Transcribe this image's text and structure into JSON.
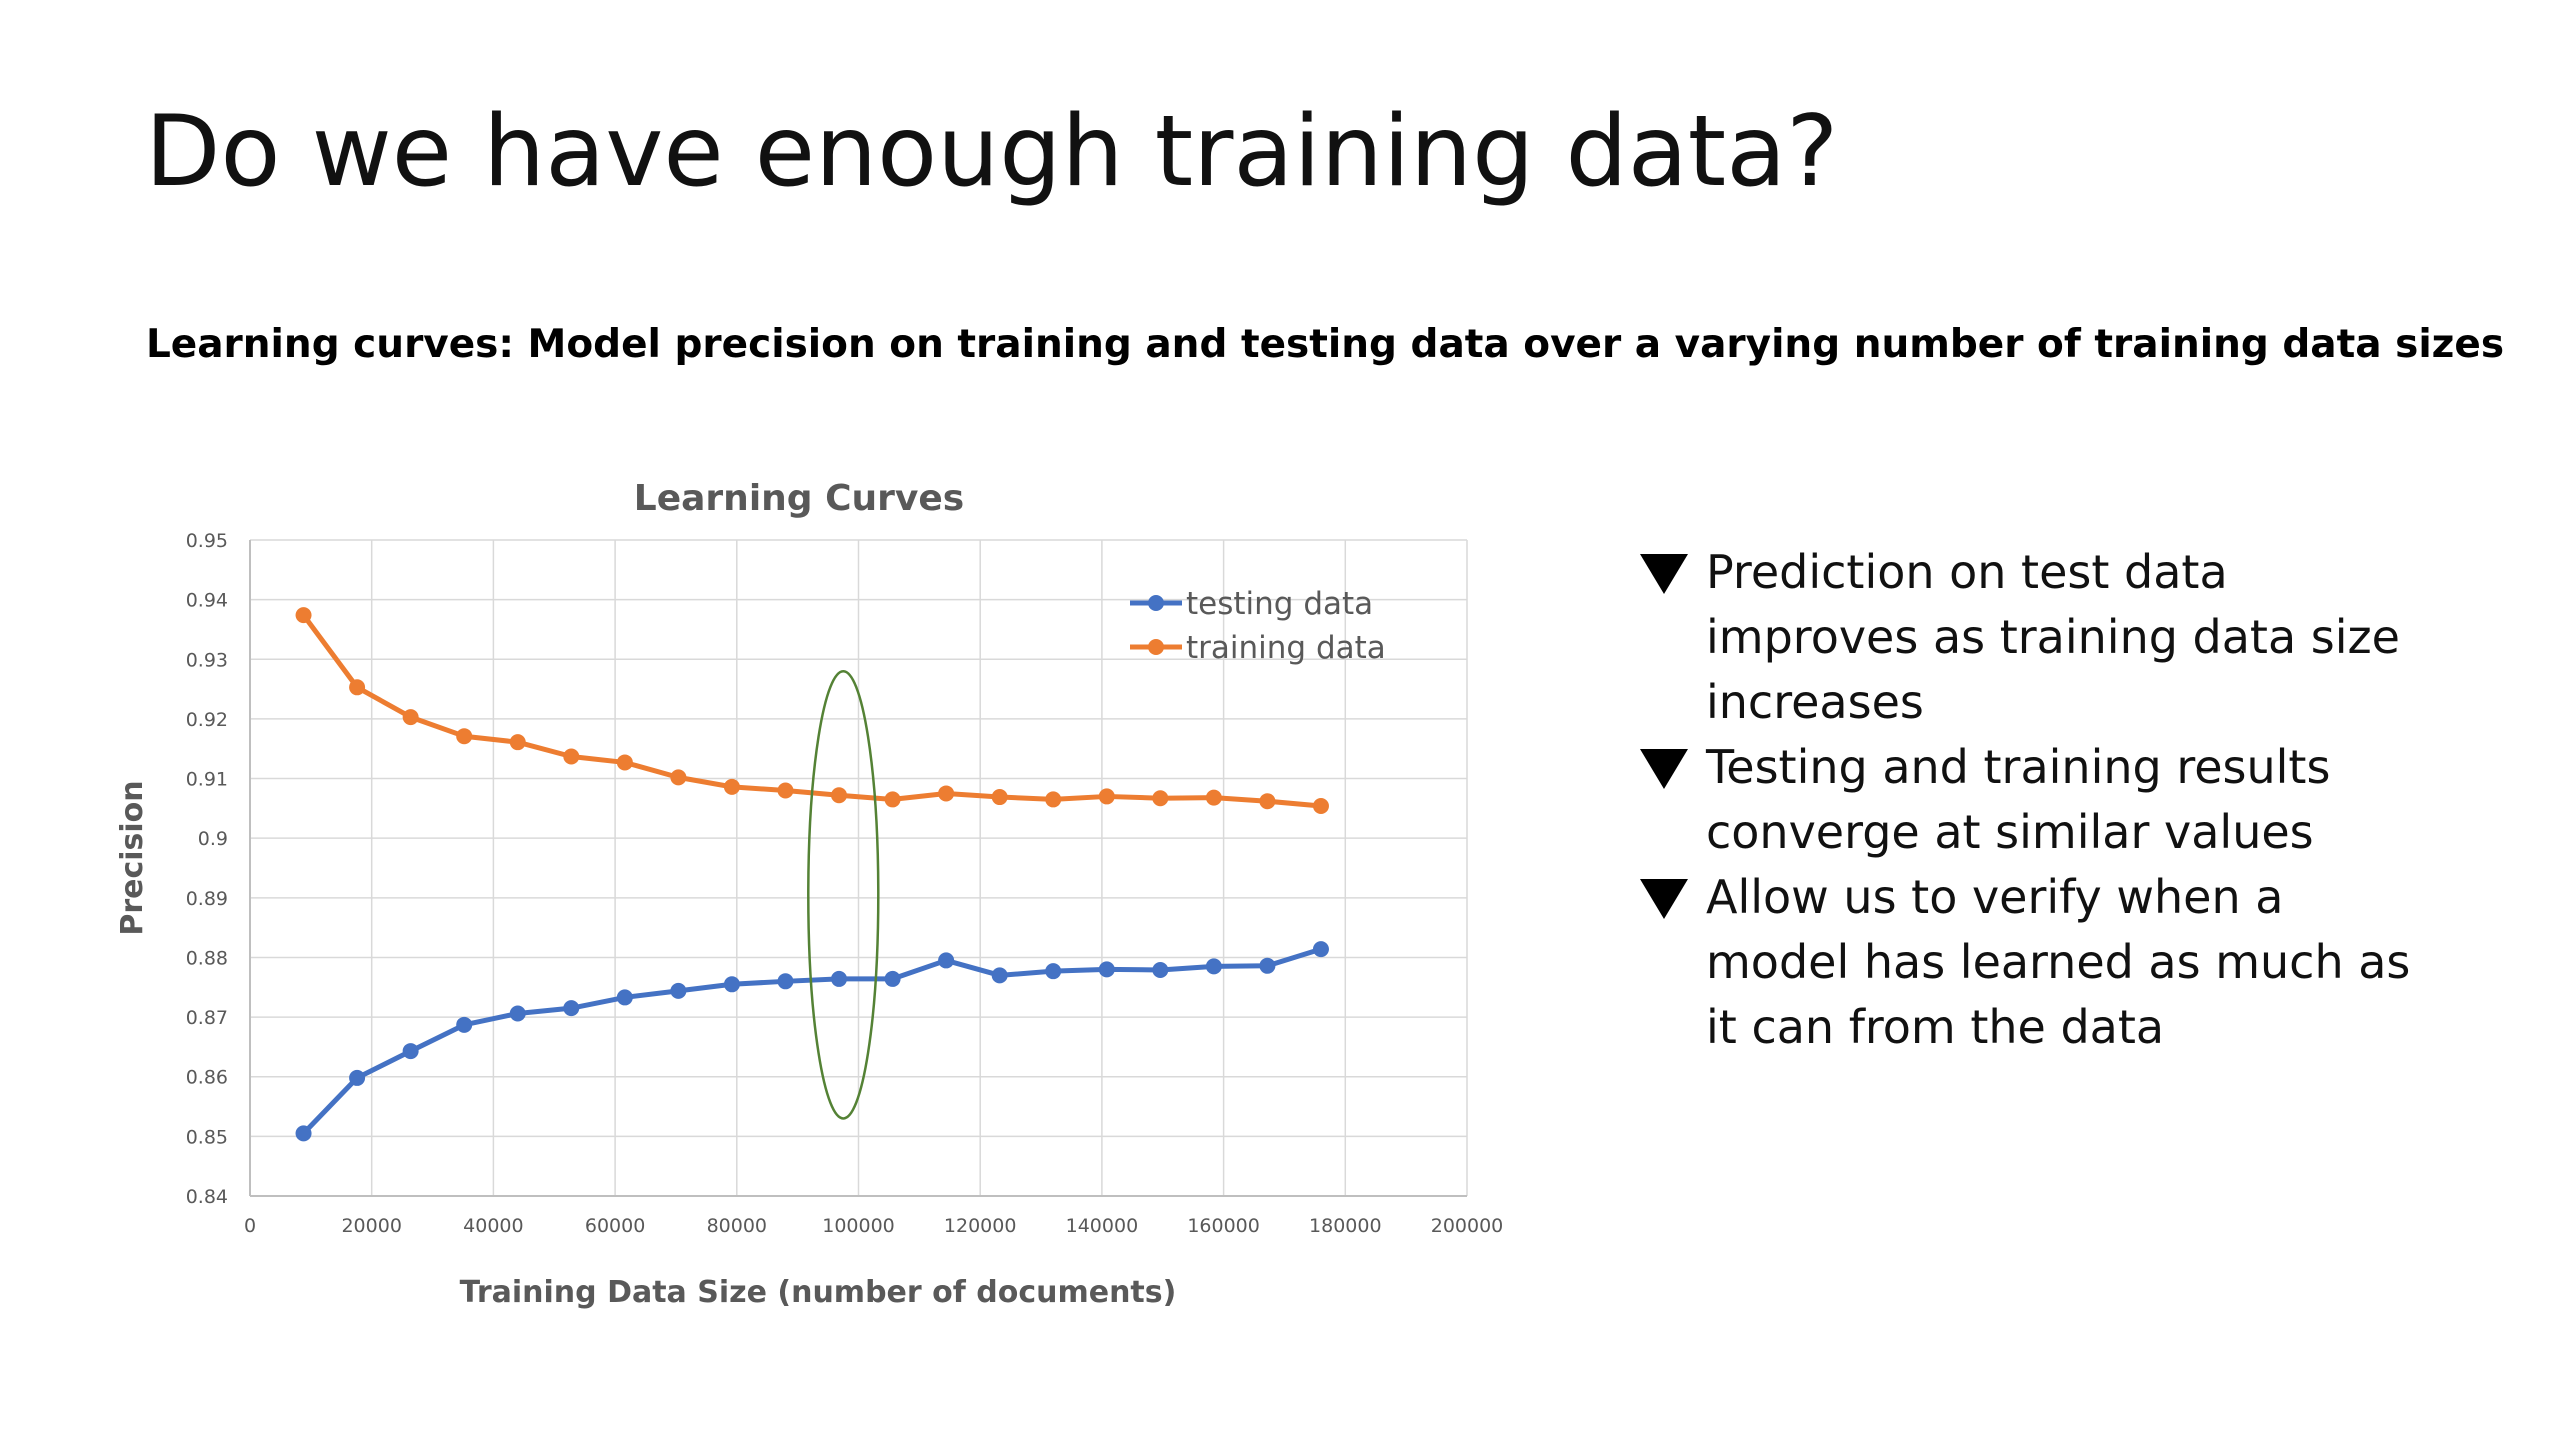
{
  "slide": {
    "title": "Do we have enough training data?",
    "subtitle": "Learning curves: Model precision on training and testing data over a varying number of training data sizes",
    "bullets": [
      "Prediction on test data improves as training data size increases",
      "Testing and training results converge at similar values",
      "Allow us to verify when a model has learned as much as it can from the data"
    ],
    "bullet_icon": "down-triangle-bullet-icon"
  },
  "chart_data": {
    "type": "line",
    "title": "Learning Curves",
    "xlabel": "Training Data Size (number of documents)",
    "ylabel": "Precision",
    "xlim": [
      0,
      200000
    ],
    "ylim": [
      0.84,
      0.95
    ],
    "xticks": [
      0,
      20000,
      40000,
      60000,
      80000,
      100000,
      120000,
      140000,
      160000,
      180000,
      200000
    ],
    "yticks": [
      "0.84",
      "0.85",
      "0.86",
      "0.87",
      "0.88",
      "0.89",
      "0.9",
      "0.91",
      "0.92",
      "0.93",
      "0.94",
      "0.95"
    ],
    "grid": true,
    "legend_position": "top-right",
    "x": [
      8800,
      17600,
      26400,
      35200,
      44000,
      52800,
      61600,
      70400,
      79200,
      88000,
      96800,
      105600,
      114400,
      123200,
      132000,
      140800,
      149600,
      158400,
      167200,
      176000
    ],
    "series": [
      {
        "name": "testing data",
        "color": "#4472C4",
        "values": [
          0.8505,
          0.8598,
          0.8643,
          0.8687,
          0.8706,
          0.8715,
          0.8733,
          0.8744,
          0.8755,
          0.876,
          0.8764,
          0.8764,
          0.8795,
          0.877,
          0.8777,
          0.878,
          0.8779,
          0.8785,
          0.8786,
          0.8814
        ]
      },
      {
        "name": "training data",
        "color": "#ED7D31",
        "values": [
          0.9374,
          0.9253,
          0.9203,
          0.9171,
          0.9161,
          0.9137,
          0.9127,
          0.9102,
          0.9086,
          0.908,
          0.9072,
          0.9065,
          0.9075,
          0.9069,
          0.9065,
          0.907,
          0.9067,
          0.9068,
          0.9062,
          0.9054
        ]
      }
    ],
    "annotation": {
      "shape": "ellipse",
      "color": "#548235",
      "x_center": 97500,
      "y_range": [
        0.853,
        0.928
      ]
    },
    "background": "#ffffff",
    "gridline_color": "#d9d9d9",
    "axis_text_color": "#595959"
  }
}
